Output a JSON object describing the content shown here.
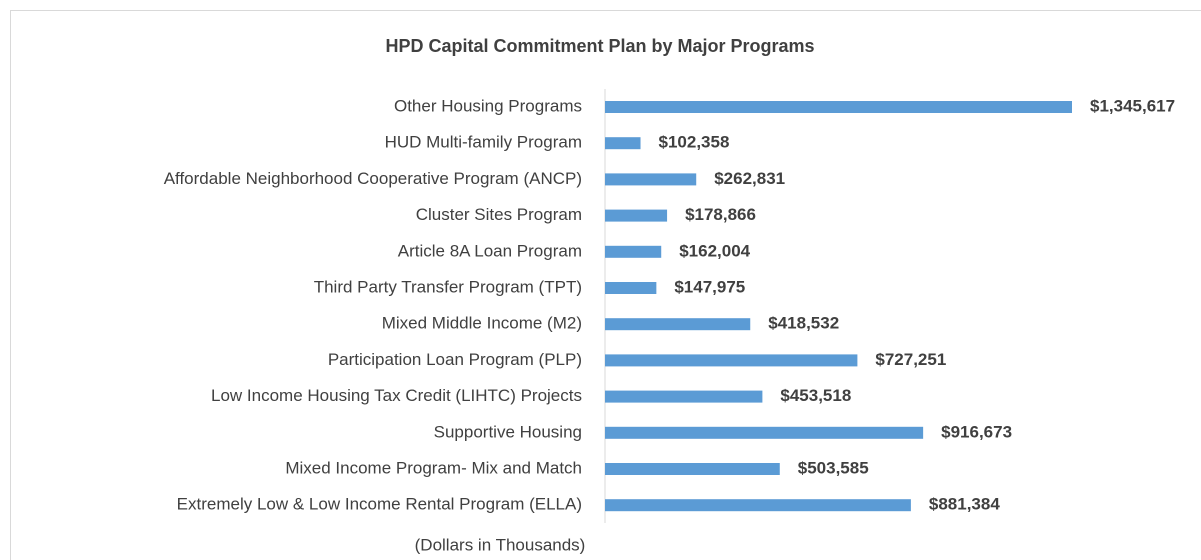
{
  "chart_data": {
    "type": "barh",
    "title": "HPD Capital Commitment Plan by Major Programs",
    "x_label": "(Dollars in Thousands)",
    "color": "#5b9bd5",
    "categories": [
      "Other Housing Programs",
      "HUD Multi-family Program",
      "Affordable Neighborhood Cooperative Program (ANCP)",
      "Cluster Sites Program",
      "Article 8A Loan Program",
      "Third Party Transfer Program (TPT)",
      "Mixed Middle Income (M2)",
      "Participation Loan Program (PLP)",
      "Low Income Housing Tax Credit (LIHTC) Projects",
      "Supportive Housing",
      "Mixed Income Program- Mix and Match",
      "Extremely Low & Low Income Rental Program (ELLA)"
    ],
    "values": [
      1345617,
      102358,
      262831,
      178866,
      162004,
      147975,
      418532,
      727251,
      453518,
      916673,
      503585,
      881384
    ],
    "value_labels": [
      "$1,345,617",
      "$102,358",
      "$262,831",
      "$178,866",
      "$162,004",
      "$147,975",
      "$418,532",
      "$727,251",
      "$453,518",
      "$916,673",
      "$503,585",
      "$881,384"
    ]
  }
}
